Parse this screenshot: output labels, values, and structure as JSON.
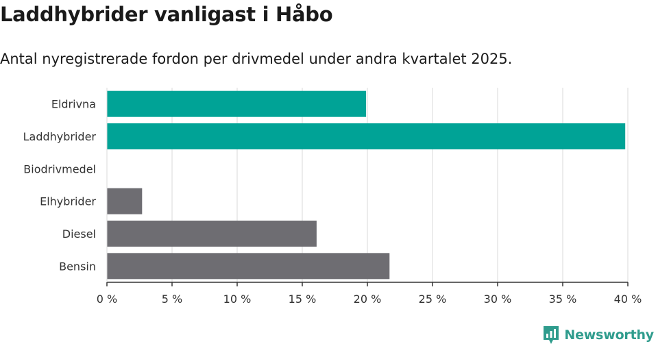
{
  "header": {
    "title": "Laddhybrider vanligast i Håbo",
    "subtitle": "Antal nyregistrerade fordon per drivmedel under andra kvartalet 2025."
  },
  "brand": {
    "name": "Newsworthy",
    "icon": "newsworthy-logo-icon"
  },
  "colors": {
    "highlight": "#00a396",
    "neutral": "#6e6d72",
    "brand": "#2f9c8d"
  },
  "chart_data": {
    "type": "bar",
    "orientation": "horizontal",
    "title": "Laddhybrider vanligast i Håbo",
    "subtitle": "Antal nyregistrerade fordon per drivmedel under andra kvartalet 2025.",
    "categories": [
      "Eldrivna",
      "Laddhybrider",
      "Biodrivmedel",
      "Elhybrider",
      "Diesel",
      "Bensin"
    ],
    "values": [
      19.9,
      39.8,
      0,
      2.7,
      16.1,
      21.7
    ],
    "highlighted": [
      true,
      true,
      false,
      false,
      false,
      false
    ],
    "xlim": [
      0,
      40
    ],
    "xticks": [
      0,
      5,
      10,
      15,
      20,
      25,
      30,
      35,
      40
    ],
    "xtick_labels": [
      "0 %",
      "5 %",
      "10 %",
      "15 %",
      "20 %",
      "25 %",
      "30 %",
      "35 %",
      "40 %"
    ],
    "xlabel": "",
    "ylabel": "",
    "grid": true
  }
}
